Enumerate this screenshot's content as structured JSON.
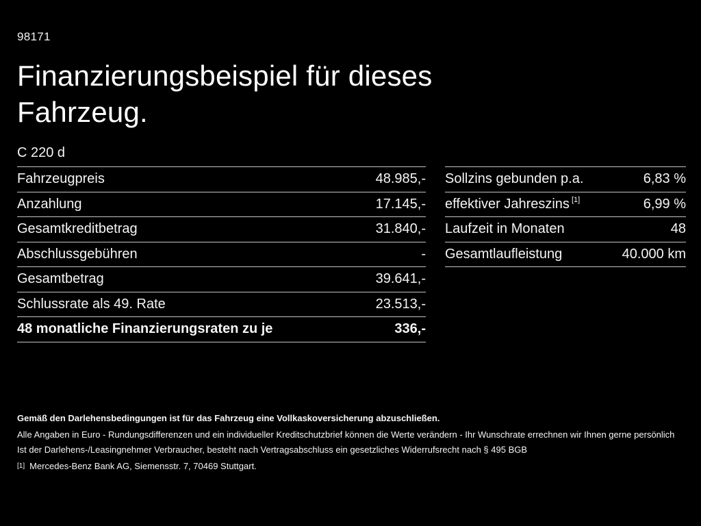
{
  "header": {
    "code": "98171",
    "title_line1": "Finanzierungsbeispiel für dieses",
    "title_line2": "Fahrzeug.",
    "model": "C 220 d"
  },
  "financing_table": {
    "rows": [
      {
        "label": "Fahrzeugpreis",
        "value": "48.985,-"
      },
      {
        "label": "Anzahlung",
        "value": "17.145,-"
      },
      {
        "label": "Gesamtkreditbetrag",
        "value": "31.840,-"
      },
      {
        "label": "Abschlussgebühren",
        "value": "-"
      },
      {
        "label": "Gesamtbetrag",
        "value": "39.641,-"
      },
      {
        "label": "Schlussrate als 49. Rate",
        "value": "23.513,-"
      },
      {
        "label": "48 monatliche Finanzierungsraten zu je",
        "value": "336,-"
      }
    ]
  },
  "conditions_table": {
    "rows": [
      {
        "label": "Sollzins gebunden p.a.",
        "value": "6,83 %"
      },
      {
        "label": "effektiver Jahreszins",
        "sup": "[1]",
        "value": "6,99 %"
      },
      {
        "label": "Laufzeit in Monaten",
        "value": "48"
      },
      {
        "label": "Gesamtlaufleistung",
        "value": "40.000 km"
      }
    ]
  },
  "footer": {
    "insurance_note": "Gemäß den Darlehensbedingungen ist für das Fahrzeug eine Vollkaskoversicherung abzuschließen.",
    "notes": [
      "Alle Angaben in Euro - Rundungsdifferenzen und ein individueller Kreditschutzbrief können die Werte verändern - Ihr Wunschrate errechnen wir Ihnen gerne persönlich",
      "Ist der Darlehens-/Leasingnehmer Verbraucher, besteht nach Vertragsabschluss ein gesetzliches Widerrufsrecht nach § 495 BGB"
    ],
    "footnote_marker": "[1]",
    "footnote_text": "Mercedes-Benz Bank AG, Siemensstr. 7, 70469 Stuttgart."
  },
  "colors": {
    "background": "#000000",
    "text": "#f5f5f5",
    "divider": "#c4c4c4"
  }
}
